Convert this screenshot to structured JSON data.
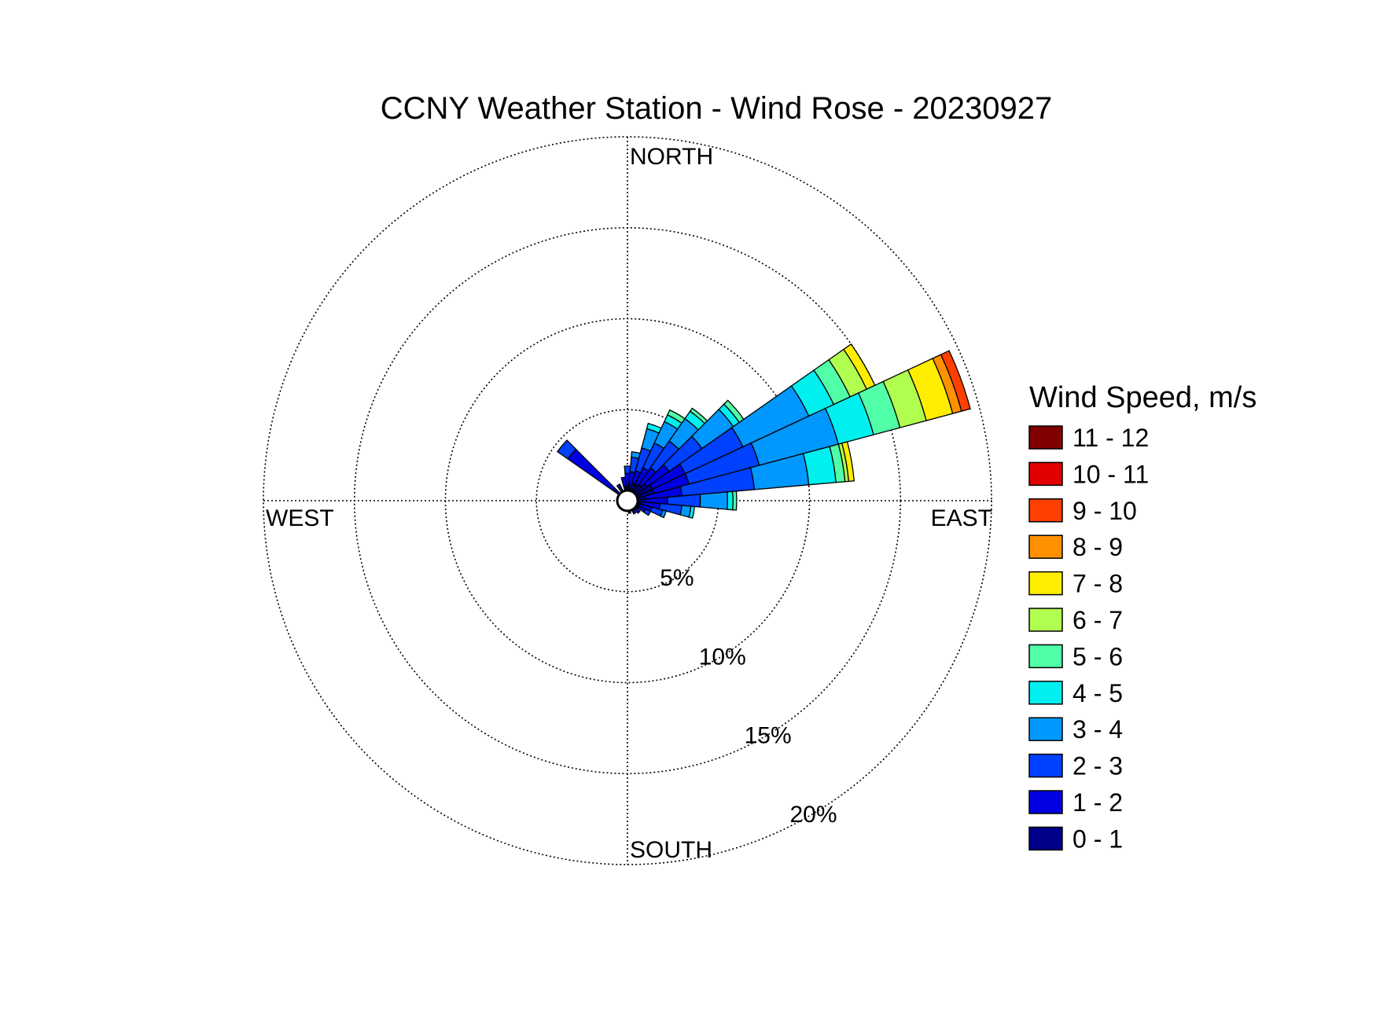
{
  "chart_data": {
    "type": "wind-rose",
    "title": "CCNY Weather Station - Wind Rose - 20230927",
    "direction_labels": {
      "north": "NORTH",
      "east": "EAST",
      "south": "SOUTH",
      "west": "WEST"
    },
    "radial_axis": {
      "unit": "%",
      "max": 20,
      "rings": [
        5,
        10,
        15,
        20
      ],
      "ring_labels": [
        "5%",
        "10%",
        "15%",
        "20%"
      ],
      "grid": true,
      "style": "dotted"
    },
    "legend": {
      "title": "Wind Speed, m/s",
      "placement": "right",
      "bins": [
        {
          "label": "11 - 12",
          "color": "#800000"
        },
        {
          "label": "10 - 11",
          "color": "#e00000"
        },
        {
          "label": "9 - 10",
          "color": "#ff4000"
        },
        {
          "label": "8 - 9",
          "color": "#ff9000"
        },
        {
          "label": "7 - 8",
          "color": "#ffee00"
        },
        {
          "label": "6 - 7",
          "color": "#b0ff50"
        },
        {
          "label": "5 - 6",
          "color": "#50ffa8"
        },
        {
          "label": "4 - 5",
          "color": "#00f0f0"
        },
        {
          "label": "3 - 4",
          "color": "#0098ff"
        },
        {
          "label": "2 - 3",
          "color": "#0040ff"
        },
        {
          "label": "1 - 2",
          "color": "#0000e0"
        },
        {
          "label": "0 - 1",
          "color": "#00008a"
        }
      ]
    },
    "sector_width_deg": 10,
    "sectors": [
      {
        "direction_deg": 310,
        "cumulative_percent": [
          1.0,
          4.0,
          4.7
        ]
      },
      {
        "direction_deg": 330,
        "cumulative_percent": [
          0.8,
          1.0
        ]
      },
      {
        "direction_deg": 350,
        "cumulative_percent": [
          0.8,
          1.3
        ]
      },
      {
        "direction_deg": 0,
        "cumulative_percent": [
          0.8,
          1.5,
          1.9
        ]
      },
      {
        "direction_deg": 10,
        "cumulative_percent": [
          0.9,
          1.6,
          2.4,
          2.7
        ]
      },
      {
        "direction_deg": 20,
        "cumulative_percent": [
          1.0,
          1.7,
          3.0,
          4.1,
          4.4
        ]
      },
      {
        "direction_deg": 30,
        "cumulative_percent": [
          1.0,
          2.0,
          3.5,
          4.8,
          5.2,
          5.5
        ]
      },
      {
        "direction_deg": 40,
        "cumulative_percent": [
          1.1,
          2.2,
          4.0,
          5.5,
          6.0,
          6.2
        ]
      },
      {
        "direction_deg": 50,
        "cumulative_percent": [
          1.3,
          2.8,
          5.0,
          7.1,
          7.5,
          7.8
        ]
      },
      {
        "direction_deg": 60,
        "cumulative_percent": [
          1.5,
          3.5,
          7.0,
          11.0,
          12.5,
          13.5,
          14.5,
          15.0
        ]
      },
      {
        "direction_deg": 70,
        "cumulative_percent": [
          1.5,
          3.5,
          7.5,
          12.0,
          14.0,
          15.5,
          17.0,
          18.5,
          19.0,
          19.5
        ]
      },
      {
        "direction_deg": 80,
        "cumulative_percent": [
          1.0,
          3.0,
          7.0,
          10.0,
          11.5,
          12.0,
          12.2,
          12.5
        ]
      },
      {
        "direction_deg": 90,
        "cumulative_percent": [
          1.0,
          2.2,
          4.0,
          5.5,
          5.8,
          6.0
        ]
      },
      {
        "direction_deg": 100,
        "cumulative_percent": [
          0.8,
          1.8,
          3.0,
          3.5,
          3.7
        ]
      },
      {
        "direction_deg": 110,
        "cumulative_percent": [
          0.7,
          1.4,
          2.0,
          2.2
        ]
      },
      {
        "direction_deg": 120,
        "cumulative_percent": [
          0.7,
          1.1,
          1.4
        ]
      },
      {
        "direction_deg": 135,
        "cumulative_percent": [
          0.6,
          0.9
        ]
      },
      {
        "direction_deg": 150,
        "cumulative_percent": [
          0.6,
          0.8
        ]
      },
      {
        "direction_deg": 170,
        "cumulative_percent": [
          0.6,
          0.7
        ]
      }
    ]
  }
}
